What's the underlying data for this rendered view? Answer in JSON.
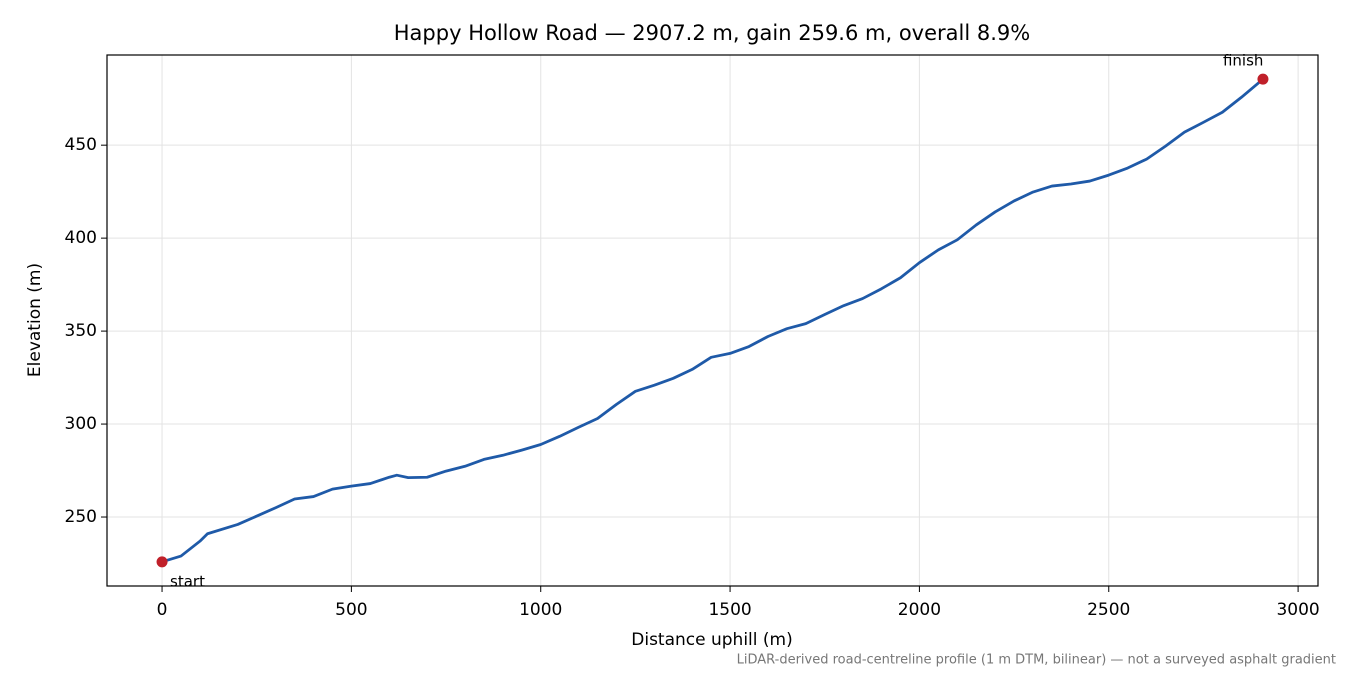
{
  "chart_data": {
    "type": "line",
    "title": "Happy Hollow Road — 2907.2 m, gain 259.6 m, overall 8.9%",
    "x_label": "Distance uphill (m)",
    "y_label": "Elevation (m)",
    "footnote": "LiDAR-derived road-centreline profile (1 m DTM, bilinear) — not a surveyed asphalt gradient",
    "x": [
      0,
      50,
      100,
      120,
      200,
      300,
      350,
      400,
      450,
      500,
      550,
      600,
      620,
      650,
      700,
      750,
      800,
      850,
      900,
      950,
      1000,
      1050,
      1100,
      1150,
      1200,
      1250,
      1300,
      1350,
      1400,
      1450,
      1500,
      1550,
      1600,
      1650,
      1700,
      1750,
      1800,
      1850,
      1900,
      1950,
      2000,
      2050,
      2100,
      2150,
      2200,
      2250,
      2300,
      2350,
      2400,
      2450,
      2500,
      2550,
      2600,
      2650,
      2700,
      2750,
      2800,
      2850,
      2907.2
    ],
    "series": [
      {
        "name": "Elevation",
        "color": "#1f5aa8",
        "values": [
          225.9,
          229,
          237,
          241,
          246,
          255,
          259.7,
          261,
          265,
          266.6,
          268,
          271.4,
          272.5,
          271.2,
          271.4,
          274.7,
          277.3,
          281,
          283.2,
          286,
          289,
          293.4,
          298.3,
          303,
          310.6,
          317.6,
          320.9,
          324.6,
          329.4,
          335.9,
          338,
          341.7,
          347.1,
          351.3,
          354,
          358.9,
          363.7,
          367.5,
          372.8,
          378.7,
          386.8,
          393.7,
          399.1,
          407.1,
          414.1,
          420,
          424.8,
          428,
          429.1,
          430.7,
          433.9,
          437.7,
          442.5,
          449.5,
          457,
          462.3,
          467.7,
          475.7,
          485.5
        ]
      }
    ],
    "markers": {
      "color": "#c0202a",
      "labels": [
        "start",
        "finish"
      ]
    },
    "xlim": [
      -145.36,
      3052.56
    ],
    "ylim": [
      212.9,
      498.5
    ],
    "xticks": [
      0,
      500,
      1000,
      1500,
      2000,
      2500,
      3000
    ],
    "yticks": [
      250,
      300,
      350,
      400,
      450
    ],
    "grid": true
  }
}
